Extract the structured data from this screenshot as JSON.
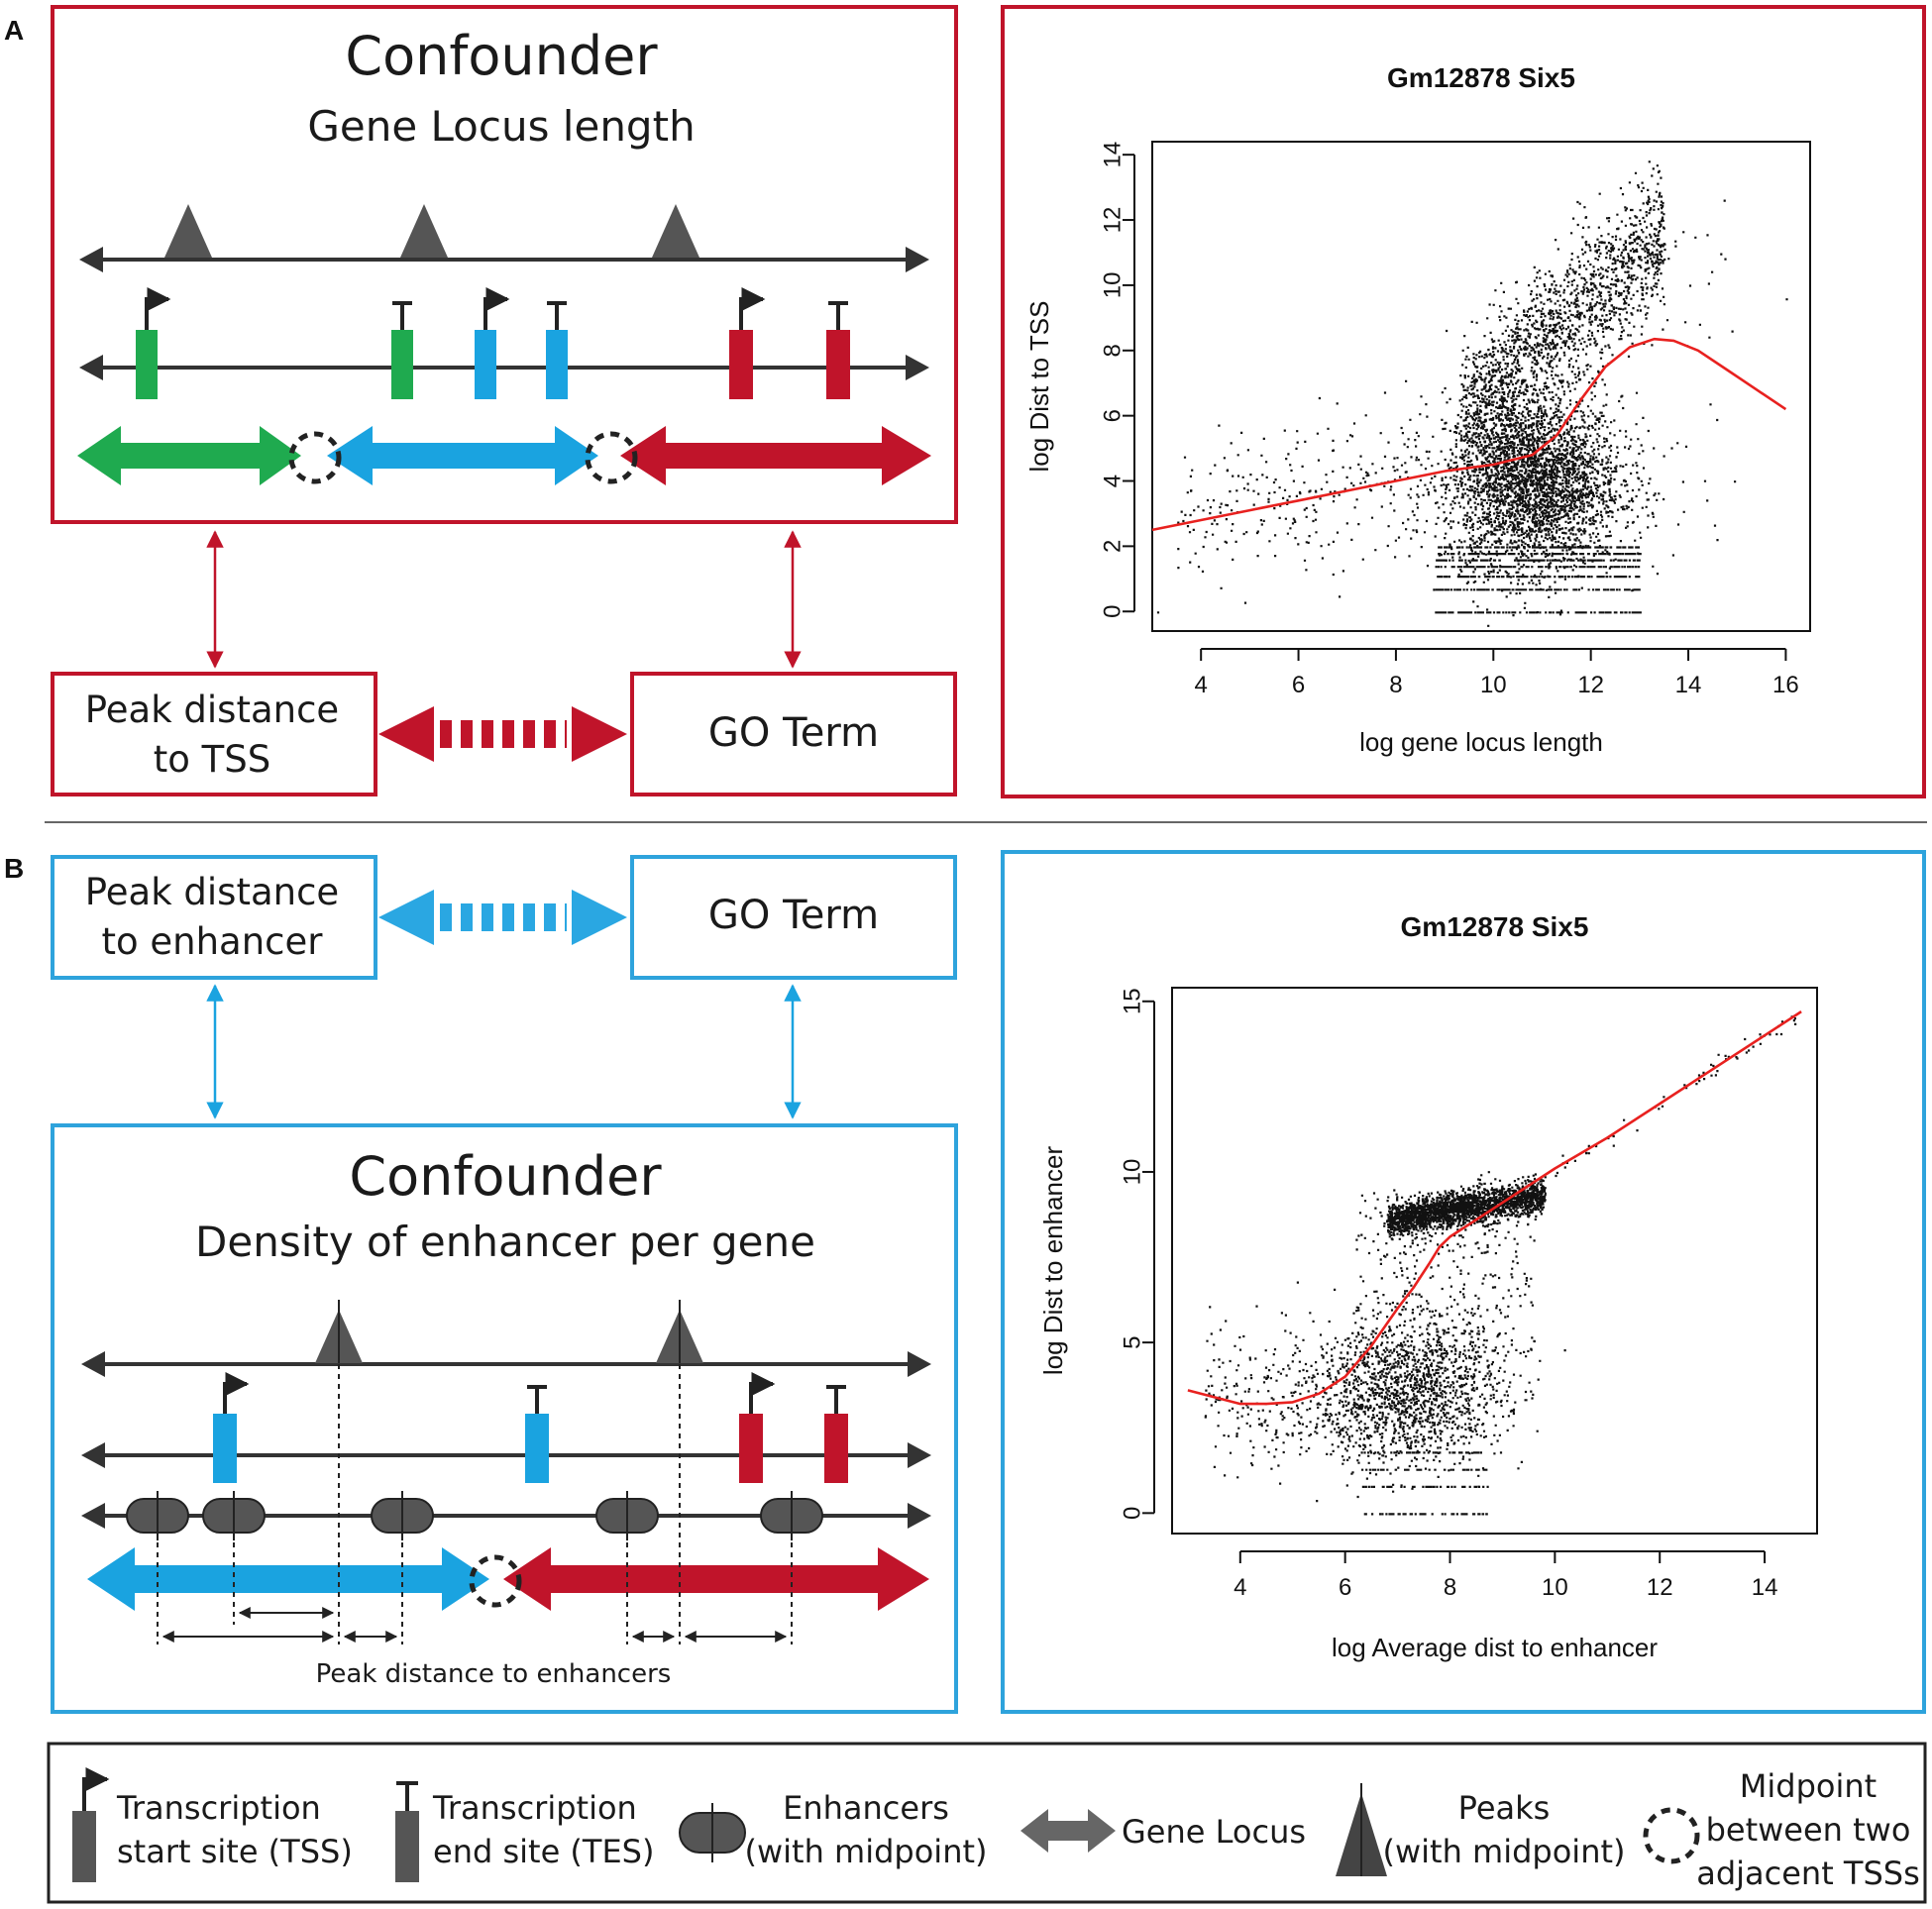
{
  "panel_a": {
    "label": "A",
    "confounder": {
      "title": "Confounder",
      "subtitle": "Gene Locus length"
    },
    "peak_box": {
      "line1": "Peak distance",
      "line2": "to TSS"
    },
    "go_box": "GO Term"
  },
  "panel_b": {
    "label": "B",
    "confounder": {
      "title": "Confounder",
      "subtitle": "Density of enhancer per gene"
    },
    "peak_box": {
      "line1": "Peak distance",
      "line2": "to enhancer"
    },
    "go_box": "GO Term",
    "measure_caption": "Peak distance to enhancers"
  },
  "legend": {
    "tss": {
      "line1": "Transcription",
      "line2": "start site (TSS)"
    },
    "tes": {
      "line1": "Transcription",
      "line2": "end site (TES)"
    },
    "enhancer": {
      "line1": "Enhancers",
      "line2": "(with midpoint)"
    },
    "locus": "Gene Locus",
    "peaks": {
      "line1": "Peaks",
      "line2": "(with midpoint)"
    },
    "midpoint": {
      "line1": "Midpoint",
      "line2": "between two",
      "line3": "adjacent TSSs"
    }
  },
  "colors": {
    "red": "#c0142a",
    "blue": "#1aa3e0",
    "green": "#1faa4f",
    "dark": "#3a3a3a",
    "panel_a_border": "#c0142a",
    "panel_b_border": "#2ea3dc",
    "fit_line": "#e8211f"
  },
  "chart_data": [
    {
      "type": "scatter",
      "title": "Gm12878 Six5",
      "xlabel": "log gene locus length",
      "ylabel": "log Dist to TSS",
      "xlim": [
        3,
        16.5
      ],
      "ylim": [
        -0.6,
        14.4
      ],
      "xticks": [
        4,
        6,
        8,
        10,
        12,
        14,
        16
      ],
      "yticks": [
        0,
        2,
        4,
        6,
        8,
        10,
        12,
        14
      ],
      "fit_line": {
        "x": [
          3.0,
          4.0,
          5.0,
          6.0,
          7.0,
          8.0,
          9.0,
          10.0,
          10.8,
          11.3,
          11.8,
          12.3,
          12.8,
          13.3,
          13.7,
          14.2,
          14.8,
          15.4,
          16.0
        ],
        "y": [
          2.5,
          2.8,
          3.1,
          3.4,
          3.7,
          4.0,
          4.3,
          4.5,
          4.8,
          5.4,
          6.5,
          7.5,
          8.1,
          8.35,
          8.3,
          8.0,
          7.4,
          6.8,
          6.2
        ]
      }
    },
    {
      "type": "scatter",
      "title": "Gm12878 Six5",
      "xlabel": "log Average dist to enhancer",
      "ylabel": "log Dist to enhancer",
      "xlim": [
        2.7,
        15.0
      ],
      "ylim": [
        -0.6,
        15.4
      ],
      "xticks": [
        4,
        6,
        8,
        10,
        12,
        14
      ],
      "yticks": [
        0,
        5,
        10,
        15
      ],
      "fit_line": {
        "x": [
          3.0,
          3.5,
          4.0,
          4.5,
          5.0,
          5.5,
          6.0,
          6.5,
          7.0,
          7.3,
          7.6,
          7.8,
          8.0,
          8.3,
          8.7,
          9.2,
          10.0,
          11.0,
          12.0,
          13.0,
          14.0,
          14.7
        ],
        "y": [
          3.6,
          3.4,
          3.2,
          3.2,
          3.25,
          3.5,
          4.0,
          4.9,
          6.0,
          6.6,
          7.3,
          7.8,
          8.1,
          8.4,
          8.8,
          9.3,
          10.1,
          11.0,
          12.0,
          13.0,
          14.0,
          14.7
        ]
      }
    }
  ]
}
